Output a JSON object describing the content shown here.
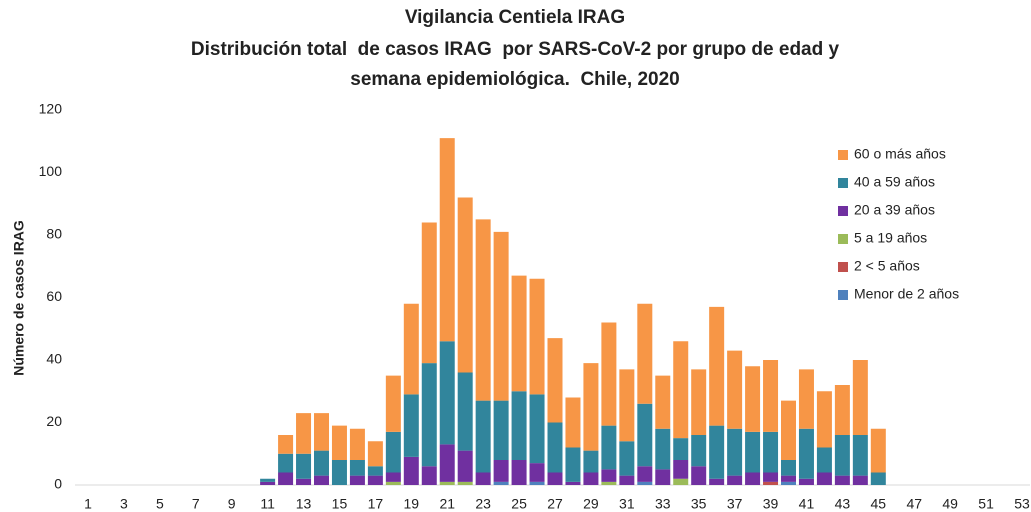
{
  "chart_data": {
    "type": "stacked_bar",
    "title": [
      "Vigilancia Centiela IRAG",
      "Distribución total  de casos IRAG  por SARS-CoV-2 por grupo de edad y",
      "semana epidemiológica.  Chile, 2020"
    ],
    "y_label": "Número de casos IRAG",
    "categories": [
      "1",
      null,
      "3",
      null,
      "5",
      null,
      "7",
      null,
      "9",
      null,
      "11",
      null,
      "13",
      null,
      "15",
      null,
      "17",
      null,
      "19",
      null,
      "21",
      null,
      "23",
      null,
      "25",
      null,
      "27",
      null,
      "29",
      null,
      "31",
      null,
      "33",
      null,
      "35",
      null,
      "37",
      null,
      "39",
      null,
      "41",
      null,
      "43",
      null,
      "45",
      null,
      "47",
      null,
      "49",
      null,
      "51",
      null,
      "53"
    ],
    "series": [
      {
        "name": "60 o más años",
        "color": "#f79646",
        "values": [
          0,
          0,
          0,
          0,
          0,
          0,
          0,
          0,
          0,
          0,
          0,
          6,
          13,
          12,
          11,
          10,
          8,
          18,
          29,
          45,
          65,
          56,
          58,
          54,
          37,
          37,
          27,
          16,
          28,
          33,
          23,
          32,
          17,
          31,
          21,
          38,
          25,
          21,
          23,
          19,
          19,
          18,
          16,
          24,
          14,
          0,
          0,
          0,
          0,
          0,
          0,
          0,
          0
        ]
      },
      {
        "name": "40 a 59 años",
        "color": "#31859c",
        "values": [
          0,
          0,
          0,
          0,
          0,
          0,
          0,
          0,
          0,
          0,
          1,
          6,
          8,
          8,
          8,
          5,
          3,
          13,
          20,
          33,
          33,
          25,
          23,
          19,
          22,
          22,
          16,
          11,
          7,
          14,
          11,
          20,
          13,
          7,
          10,
          17,
          15,
          13,
          13,
          5,
          16,
          8,
          13,
          13,
          4,
          0,
          0,
          0,
          0,
          0,
          0,
          0,
          0
        ]
      },
      {
        "name": "20 a 39 años",
        "color": "#7030a0",
        "values": [
          0,
          0,
          0,
          0,
          0,
          0,
          0,
          0,
          0,
          0,
          1,
          4,
          2,
          3,
          0,
          3,
          3,
          3,
          9,
          6,
          12,
          10,
          4,
          7,
          8,
          6,
          4,
          1,
          4,
          4,
          3,
          5,
          5,
          6,
          6,
          2,
          3,
          4,
          3,
          2,
          2,
          4,
          3,
          3,
          0,
          0,
          0,
          0,
          0,
          0,
          0,
          0,
          0
        ]
      },
      {
        "name": "5 a 19 años",
        "color": "#9bbb59",
        "values": [
          0,
          0,
          0,
          0,
          0,
          0,
          0,
          0,
          0,
          0,
          0,
          0,
          0,
          0,
          0,
          0,
          0,
          1,
          0,
          0,
          1,
          1,
          0,
          0,
          0,
          0,
          0,
          0,
          0,
          1,
          0,
          0,
          0,
          2,
          0,
          0,
          0,
          0,
          0,
          0,
          0,
          0,
          0,
          0,
          0,
          0,
          0,
          0,
          0,
          0,
          0,
          0,
          0
        ]
      },
      {
        "name": "2 < 5 años",
        "color": "#c0504d",
        "values": [
          0,
          0,
          0,
          0,
          0,
          0,
          0,
          0,
          0,
          0,
          0,
          0,
          0,
          0,
          0,
          0,
          0,
          0,
          0,
          0,
          0,
          0,
          0,
          0,
          0,
          0,
          0,
          0,
          0,
          0,
          0,
          0,
          0,
          0,
          0,
          0,
          0,
          0,
          1,
          0,
          0,
          0,
          0,
          0,
          0,
          0,
          0,
          0,
          0,
          0,
          0,
          0,
          0
        ]
      },
      {
        "name": "Menor de 2 años",
        "color": "#4f81bd",
        "values": [
          0,
          0,
          0,
          0,
          0,
          0,
          0,
          0,
          0,
          0,
          0,
          0,
          0,
          0,
          0,
          0,
          0,
          0,
          0,
          0,
          0,
          0,
          0,
          1,
          0,
          1,
          0,
          0,
          0,
          0,
          0,
          1,
          0,
          0,
          0,
          0,
          0,
          0,
          0,
          1,
          0,
          0,
          0,
          0,
          0,
          0,
          0,
          0,
          0,
          0,
          0,
          0,
          0
        ]
      }
    ],
    "ylim": [
      0,
      120
    ],
    "yticks": [
      0,
      20,
      40,
      60,
      80,
      100,
      120
    ],
    "grid": false,
    "legend": "right"
  }
}
